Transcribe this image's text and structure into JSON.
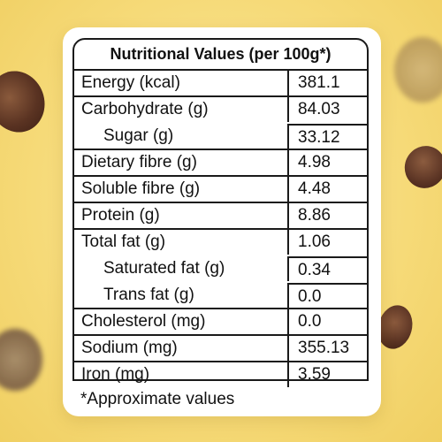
{
  "label": {
    "title": "Nutritional Values (per 100g*)",
    "rows": [
      {
        "name": "Energy (kcal)",
        "value": "381.1"
      },
      {
        "name": "Carbohydrate (g)",
        "value": "84.03"
      },
      {
        "name": "Sugar (g)",
        "value": "33.12"
      },
      {
        "name": "Dietary fibre (g)",
        "value": "4.98"
      },
      {
        "name": "Soluble fibre (g)",
        "value": "4.48"
      },
      {
        "name": "Protein (g)",
        "value": "8.86"
      },
      {
        "name": "Total fat (g)",
        "value": "1.06"
      },
      {
        "name": "Saturated fat (g)",
        "value": "0.34"
      },
      {
        "name": "Trans fat (g)",
        "value": "0.0"
      },
      {
        "name": "Cholesterol (mg)",
        "value": "0.0"
      },
      {
        "name": "Sodium (mg)",
        "value": "355.13"
      },
      {
        "name": "Iron (mg)",
        "value": "3.59"
      }
    ],
    "footnote": "*Approximate values"
  },
  "colors": {
    "background": "#f6da78",
    "card": "#ffffff",
    "text": "#111111",
    "cereal": "#5a3322"
  }
}
